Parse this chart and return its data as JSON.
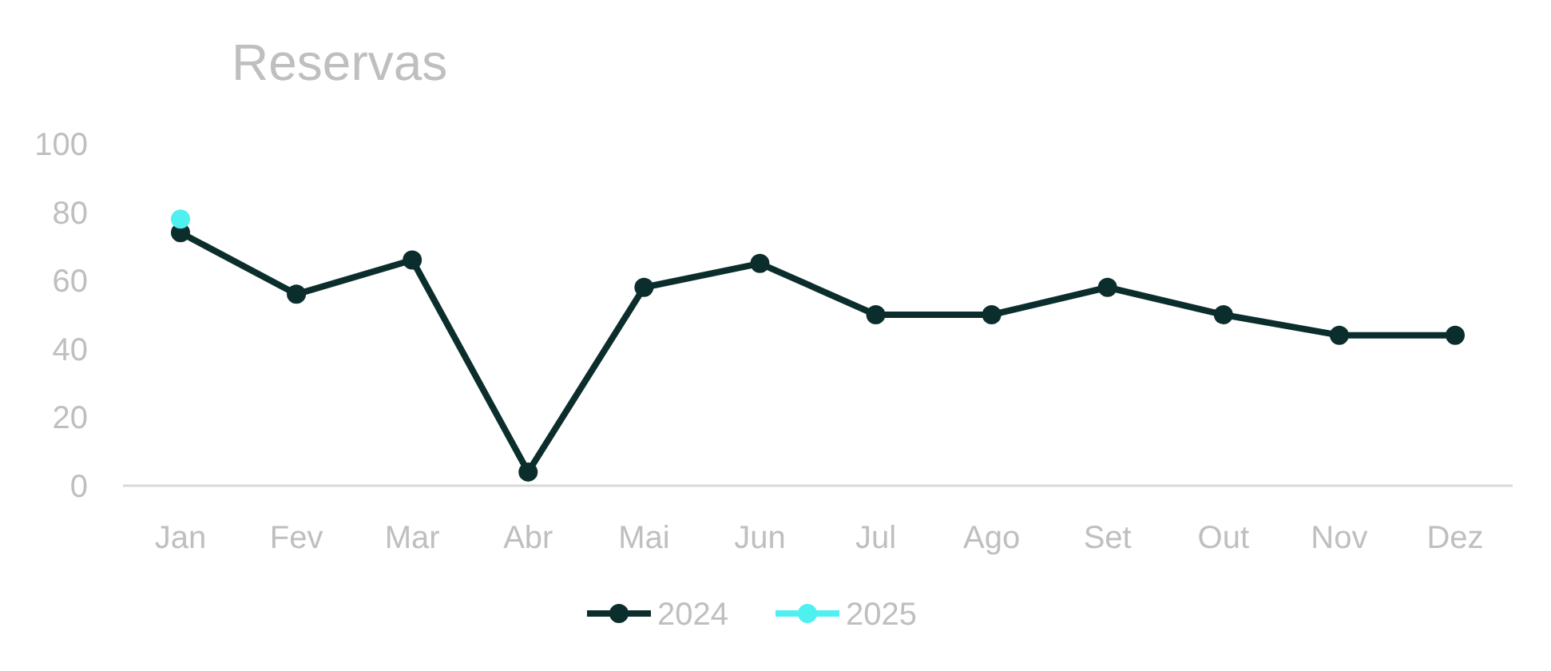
{
  "chart_data": {
    "type": "line",
    "title": "Reservas",
    "categories": [
      "Jan",
      "Fev",
      "Mar",
      "Abr",
      "Mai",
      "Jun",
      "Jul",
      "Ago",
      "Set",
      "Out",
      "Nov",
      "Dez"
    ],
    "series": [
      {
        "name": "2024",
        "color": "#0b2e2c",
        "values": [
          74,
          56,
          66,
          4,
          58,
          65,
          50,
          50,
          58,
          50,
          44,
          44
        ]
      },
      {
        "name": "2025",
        "color": "#4ef0f0",
        "values": [
          78,
          null,
          null,
          null,
          null,
          null,
          null,
          null,
          null,
          null,
          null,
          null
        ]
      }
    ],
    "ylim": [
      0,
      100
    ],
    "yticks": [
      0,
      20,
      40,
      60,
      80,
      100
    ],
    "grid": false,
    "legend": "bottom",
    "marker": "circle",
    "line_style": "solid"
  }
}
